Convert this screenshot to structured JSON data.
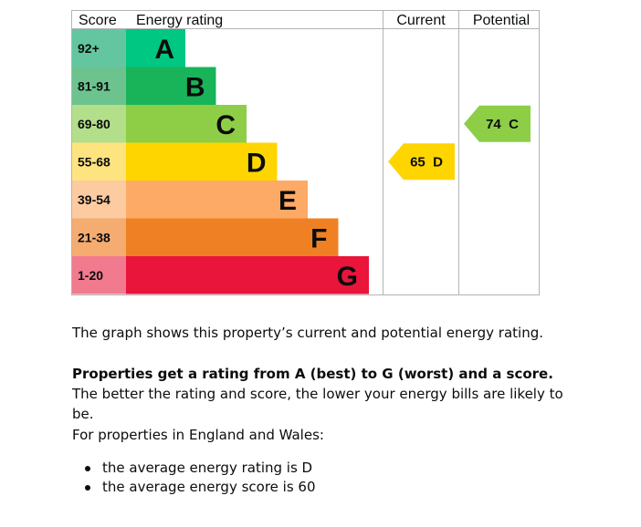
{
  "chart_data": {
    "type": "bar",
    "headers": {
      "score": "Score",
      "rating": "Energy rating",
      "current": "Current",
      "potential": "Potential"
    },
    "bands": [
      {
        "letter": "A",
        "score_range": "92+",
        "min_score": 92,
        "bar_color": "#00c781",
        "score_cell_color": "#63c6a0"
      },
      {
        "letter": "B",
        "score_range": "81-91",
        "min_score": 81,
        "bar_color": "#19b459",
        "score_cell_color": "#6cc38e"
      },
      {
        "letter": "C",
        "score_range": "69-80",
        "min_score": 69,
        "bar_color": "#8dce46",
        "score_cell_color": "#b3de8a"
      },
      {
        "letter": "D",
        "score_range": "55-68",
        "min_score": 55,
        "bar_color": "#ffd500",
        "score_cell_color": "#fee47e"
      },
      {
        "letter": "E",
        "score_range": "39-54",
        "min_score": 39,
        "bar_color": "#fcaa65",
        "score_cell_color": "#fccba0"
      },
      {
        "letter": "F",
        "score_range": "21-38",
        "min_score": 21,
        "bar_color": "#ef8023",
        "score_cell_color": "#f5ac70"
      },
      {
        "letter": "G",
        "score_range": "1-20",
        "min_score": 1,
        "bar_color": "#e9153b",
        "score_cell_color": "#f17a8f"
      }
    ],
    "current": {
      "score": 65,
      "letter": "D",
      "label": "65  D",
      "color": "#ffd500"
    },
    "potential": {
      "score": 74,
      "letter": "C",
      "label": "74  C",
      "color": "#8dce46"
    }
  },
  "description": {
    "intro": "The graph shows this property’s current and potential energy rating.",
    "bold_lead": "Properties get a rating from A (best) to G (worst) and a score.",
    "rest": " The better the rating and score, the lower your energy bills are likely to be.",
    "region_note": "For properties in England and Wales:",
    "averages": [
      "the average energy rating is D",
      "the average energy score is 60"
    ]
  }
}
